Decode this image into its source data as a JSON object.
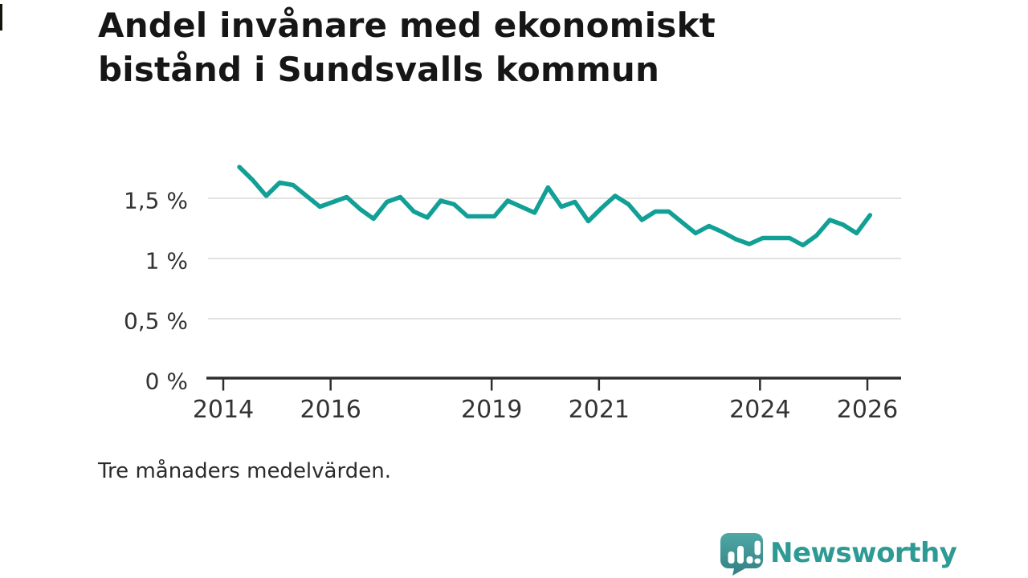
{
  "page": {
    "title_line1": "Andel invånare med ekonomiskt",
    "title_line2": "bistånd i Sundsvalls kommun",
    "footnote": "Tre månaders medelvärden.",
    "brand": {
      "name": "Newsworthy",
      "icon": "speech-bubble-bar-chart-icon"
    }
  },
  "colors": {
    "background": "#FFFFFF",
    "line": "#12A096",
    "grid": "#E2E2E2",
    "axis": "#2E2E2E",
    "tick_label": "#333333",
    "title_text": "#161616",
    "footnote_text": "#2B2B2B",
    "brand_teal": "#2E9A94",
    "logo_gradient_top": "#4FA8A6",
    "logo_gradient_bottom": "#337F82"
  },
  "chart_data": {
    "type": "line",
    "title": "Andel invånare med ekonomiskt bistånd i Sundsvalls kommun",
    "note": "Tre månaders medelvärden.",
    "unit": "%",
    "frequency": "quarterly (three-month averages)",
    "legend": "none",
    "grid": "horizontal-only",
    "xlim": [
      2013.73,
      2026.63
    ],
    "ylim": [
      0,
      1.85
    ],
    "x_ticks": [
      {
        "value": 2014,
        "label": "2014"
      },
      {
        "value": 2016,
        "label": "2016"
      },
      {
        "value": 2019,
        "label": "2019"
      },
      {
        "value": 2021,
        "label": "2021"
      },
      {
        "value": 2024,
        "label": "2024"
      },
      {
        "value": 2026,
        "label": "2026"
      }
    ],
    "y_ticks": [
      {
        "value": 0,
        "label": "0 %"
      },
      {
        "value": 0.5,
        "label": "0,5 %"
      },
      {
        "value": 1,
        "label": "1 %"
      },
      {
        "value": 1.5,
        "label": "1,5 %"
      }
    ],
    "x": [
      2014.3,
      2014.55,
      2014.8,
      2015.05,
      2015.3,
      2015.55,
      2015.8,
      2016.05,
      2016.3,
      2016.55,
      2016.8,
      2017.05,
      2017.3,
      2017.55,
      2017.8,
      2018.05,
      2018.3,
      2018.55,
      2018.8,
      2019.05,
      2019.3,
      2019.55,
      2019.8,
      2020.05,
      2020.3,
      2020.55,
      2020.8,
      2021.05,
      2021.3,
      2021.55,
      2021.8,
      2022.05,
      2022.3,
      2022.55,
      2022.8,
      2023.05,
      2023.3,
      2023.55,
      2023.8,
      2024.05,
      2024.3,
      2024.55,
      2024.8,
      2025.05,
      2025.3,
      2025.55,
      2025.8,
      2026.05
    ],
    "values": [
      1.76,
      1.65,
      1.52,
      1.63,
      1.61,
      1.52,
      1.43,
      1.47,
      1.51,
      1.41,
      1.33,
      1.47,
      1.51,
      1.39,
      1.34,
      1.48,
      1.45,
      1.35,
      1.35,
      1.35,
      1.48,
      1.43,
      1.38,
      1.59,
      1.43,
      1.47,
      1.31,
      1.42,
      1.52,
      1.45,
      1.32,
      1.39,
      1.39,
      1.3,
      1.21,
      1.27,
      1.22,
      1.16,
      1.12,
      1.17,
      1.17,
      1.17,
      1.11,
      1.19,
      1.32,
      1.28,
      1.21,
      1.36
    ]
  }
}
